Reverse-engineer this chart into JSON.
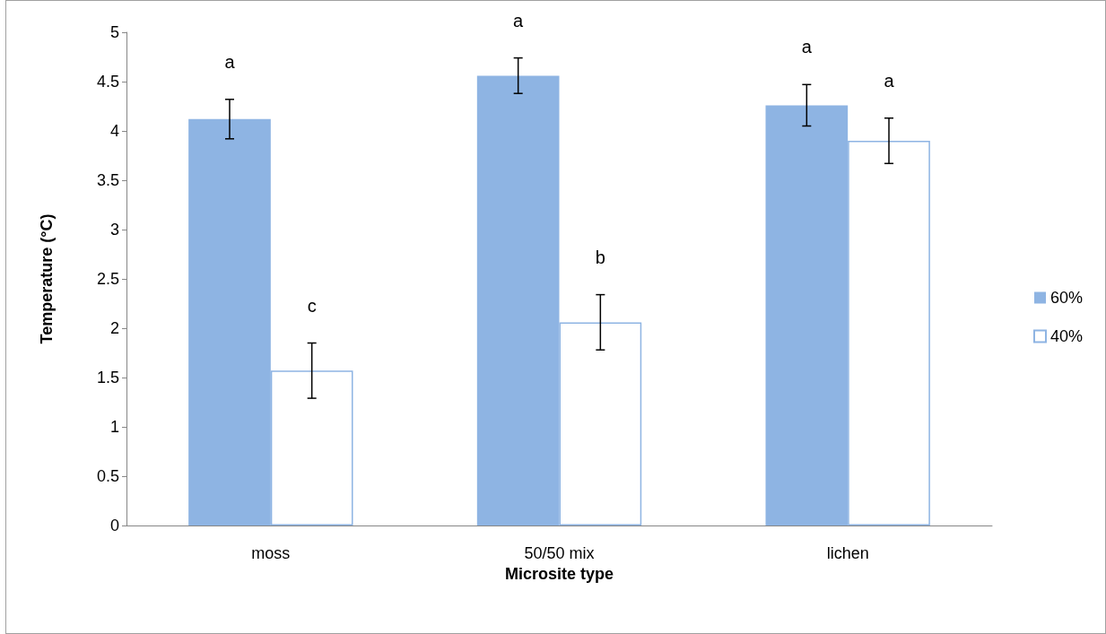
{
  "chart_data": {
    "type": "bar",
    "xlabel": "Microsite type",
    "ylabel": "Temperature (°C)",
    "categories": [
      "moss",
      "50/50 mix",
      "lichen"
    ],
    "series": [
      {
        "name": "60%",
        "color": "#8eb4e3",
        "values": [
          4.12,
          4.56,
          4.26
        ],
        "errors": [
          0.2,
          0.18,
          0.21
        ]
      },
      {
        "name": "40%",
        "color": "#ffffff",
        "values": [
          1.57,
          2.06,
          3.9
        ],
        "errors": [
          0.28,
          0.28,
          0.23
        ]
      }
    ],
    "ylim": [
      0,
      5
    ],
    "yticks": [
      0,
      0.5,
      1,
      1.5,
      2,
      2.5,
      3,
      3.5,
      4,
      4.5,
      5
    ],
    "grid": false,
    "legend": "right",
    "annotations": [
      "a",
      "c",
      "a",
      "b",
      "a",
      "a"
    ]
  }
}
